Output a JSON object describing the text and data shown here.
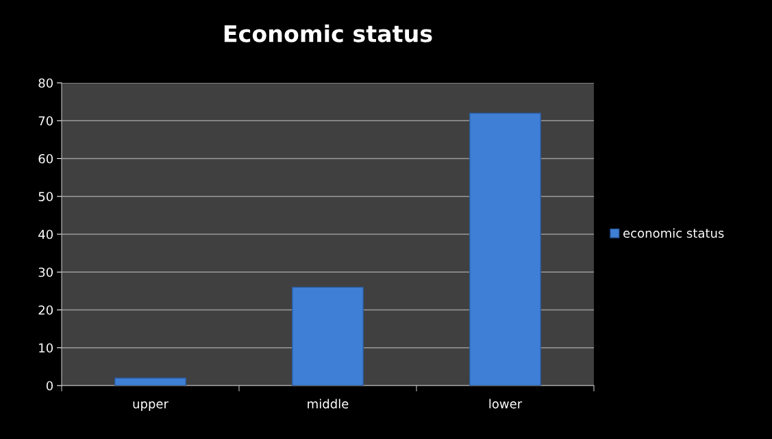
{
  "chart_data": {
    "type": "bar",
    "title": "Economic status",
    "categories": [
      "upper",
      "middle",
      "lower"
    ],
    "series": [
      {
        "name": "economic status",
        "color": "#3f7fd6",
        "values": [
          2,
          26,
          72
        ]
      }
    ],
    "ylim": [
      0,
      80
    ],
    "yticks": [
      0,
      10,
      20,
      30,
      40,
      50,
      60,
      70,
      80
    ],
    "grid": "y",
    "legend": "right"
  }
}
